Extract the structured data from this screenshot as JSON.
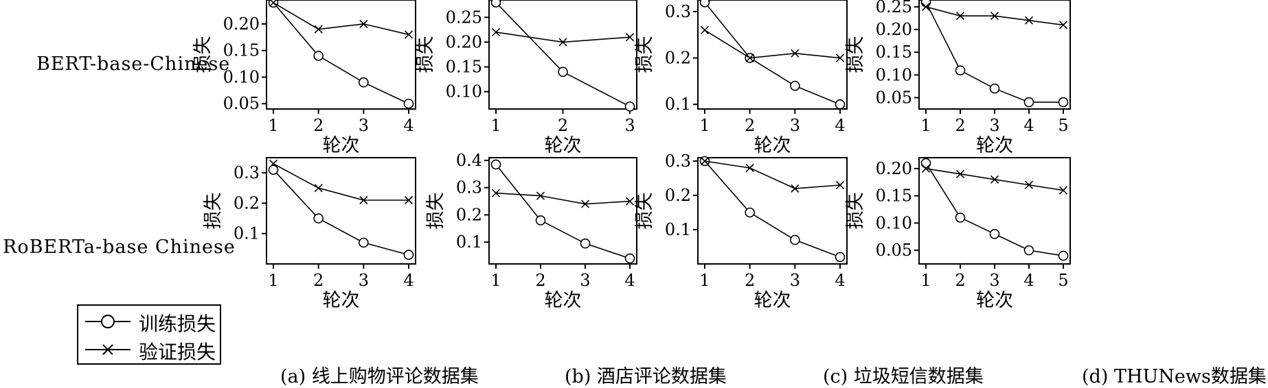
{
  "figure": {
    "row_labels": [
      "BERT-base-Chinese",
      "RoBERTa-base Chinese"
    ],
    "captions": [
      "(a) 线上购物评论数据集",
      "(b) 酒店评论数据集",
      "(c) 垃圾短信数据集",
      "(d) THUNews数据集"
    ],
    "legend": {
      "train": "训练损失",
      "val": "验证损失"
    }
  },
  "chart_data": [
    {
      "type": "line",
      "panel": "a",
      "row": 0,
      "xlabel": "轮次",
      "ylabel": "损失",
      "x": [
        1,
        2,
        3,
        4
      ],
      "ylim": [
        0.04,
        0.245
      ],
      "yticks": [
        "0.05",
        "0.10",
        "0.15",
        "0.20"
      ],
      "series": [
        {
          "name": "训练损失",
          "marker": "circle",
          "values": [
            0.24,
            0.14,
            0.09,
            0.05
          ]
        },
        {
          "name": "验证损失",
          "marker": "x",
          "values": [
            0.24,
            0.19,
            0.2,
            0.18
          ]
        }
      ]
    },
    {
      "type": "line",
      "panel": "b",
      "row": 0,
      "xlabel": "轮次",
      "ylabel": "损失",
      "x": [
        1,
        2,
        3
      ],
      "ylim": [
        0.065,
        0.285
      ],
      "yticks": [
        "0.10",
        "0.15",
        "0.20",
        "0.25"
      ],
      "series": [
        {
          "name": "训练损失",
          "marker": "circle",
          "values": [
            0.28,
            0.14,
            0.07
          ]
        },
        {
          "name": "验证损失",
          "marker": "x",
          "values": [
            0.22,
            0.2,
            0.21
          ]
        }
      ]
    },
    {
      "type": "line",
      "panel": "c",
      "row": 0,
      "xlabel": "轮次",
      "ylabel": "损失",
      "x": [
        1,
        2,
        3,
        4
      ],
      "ylim": [
        0.09,
        0.325
      ],
      "yticks": [
        "0.1",
        "0.2",
        "0.3"
      ],
      "series": [
        {
          "name": "训练损失",
          "marker": "circle",
          "values": [
            0.32,
            0.2,
            0.14,
            0.1
          ]
        },
        {
          "name": "验证损失",
          "marker": "x",
          "values": [
            0.26,
            0.2,
            0.21,
            0.2
          ]
        }
      ]
    },
    {
      "type": "line",
      "panel": "d",
      "row": 0,
      "xlabel": "轮次",
      "ylabel": "损失",
      "x": [
        1,
        2,
        3,
        4,
        5
      ],
      "ylim": [
        0.025,
        0.265
      ],
      "yticks": [
        "0.05",
        "0.10",
        "0.15",
        "0.20",
        "0.25"
      ],
      "series": [
        {
          "name": "训练损失",
          "marker": "circle",
          "values": [
            0.26,
            0.11,
            0.07,
            0.04,
            0.04
          ]
        },
        {
          "name": "验证损失",
          "marker": "x",
          "values": [
            0.25,
            0.23,
            0.23,
            0.22,
            0.21
          ]
        }
      ]
    },
    {
      "type": "line",
      "panel": "a",
      "row": 1,
      "xlabel": "轮次",
      "ylabel": "损失",
      "x": [
        1,
        2,
        3,
        4
      ],
      "ylim": [
        0.0,
        0.35
      ],
      "yticks": [
        "0.1",
        "0.2",
        "0.3"
      ],
      "series": [
        {
          "name": "训练损失",
          "marker": "circle",
          "values": [
            0.31,
            0.15,
            0.07,
            0.03
          ]
        },
        {
          "name": "验证损失",
          "marker": "x",
          "values": [
            0.33,
            0.25,
            0.21,
            0.21
          ]
        }
      ]
    },
    {
      "type": "line",
      "panel": "b",
      "row": 1,
      "xlabel": "轮次",
      "ylabel": "损失",
      "x": [
        1,
        2,
        3,
        4
      ],
      "ylim": [
        0.02,
        0.41
      ],
      "yticks": [
        "0.1",
        "0.2",
        "0.3",
        "0.4"
      ],
      "series": [
        {
          "name": "训练损失",
          "marker": "circle",
          "values": [
            0.385,
            0.18,
            0.095,
            0.04
          ]
        },
        {
          "name": "验证损失",
          "marker": "x",
          "values": [
            0.28,
            0.27,
            0.24,
            0.25
          ]
        }
      ]
    },
    {
      "type": "line",
      "panel": "c",
      "row": 1,
      "xlabel": "轮次",
      "ylabel": "损失",
      "x": [
        1,
        2,
        3,
        4
      ],
      "ylim": [
        0.0,
        0.31
      ],
      "yticks": [
        "0.1",
        "0.2",
        "0.3"
      ],
      "series": [
        {
          "name": "训练损失",
          "marker": "circle",
          "values": [
            0.3,
            0.15,
            0.07,
            0.02
          ]
        },
        {
          "name": "验证损失",
          "marker": "x",
          "values": [
            0.3,
            0.28,
            0.22,
            0.23
          ]
        }
      ]
    },
    {
      "type": "line",
      "panel": "d",
      "row": 1,
      "xlabel": "轮次",
      "ylabel": "损失",
      "x": [
        1,
        2,
        3,
        4,
        5
      ],
      "ylim": [
        0.025,
        0.22
      ],
      "yticks": [
        "0.05",
        "0.10",
        "0.15",
        "0.20"
      ],
      "series": [
        {
          "name": "训练损失",
          "marker": "circle",
          "values": [
            0.21,
            0.11,
            0.08,
            0.05,
            0.04
          ]
        },
        {
          "name": "验证损失",
          "marker": "x",
          "values": [
            0.2,
            0.19,
            0.18,
            0.17,
            0.16
          ]
        }
      ]
    }
  ]
}
